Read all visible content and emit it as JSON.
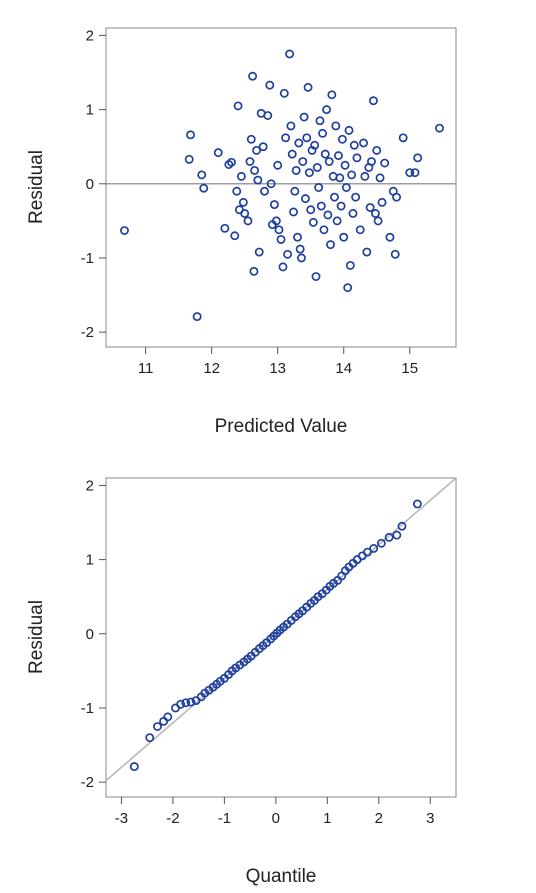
{
  "chart_data": [
    {
      "type": "scatter",
      "xlabel": "Predicted Value",
      "ylabel": "Residual",
      "xlim": [
        10.4,
        15.7
      ],
      "ylim": [
        -2.2,
        2.1
      ],
      "xticks": [
        "11",
        "12",
        "13",
        "14",
        "15"
      ],
      "yticks": [
        "-2",
        "-1",
        "0",
        "1",
        "2"
      ],
      "reference_line": {
        "type": "horizontal",
        "y": 0
      },
      "marker_color": "#1f3f9e",
      "reference_color": "#9e9e9e",
      "points": [
        [
          10.68,
          -0.63
        ],
        [
          11.78,
          -1.79
        ],
        [
          11.68,
          0.66
        ],
        [
          11.66,
          0.33
        ],
        [
          11.85,
          0.12
        ],
        [
          11.88,
          -0.06
        ],
        [
          12.1,
          0.42
        ],
        [
          12.2,
          -0.6
        ],
        [
          12.26,
          0.26
        ],
        [
          12.3,
          0.29
        ],
        [
          12.35,
          -0.7
        ],
        [
          12.38,
          -0.1
        ],
        [
          12.4,
          1.05
        ],
        [
          12.42,
          -0.35
        ],
        [
          12.45,
          0.1
        ],
        [
          12.48,
          -0.25
        ],
        [
          12.5,
          -0.4
        ],
        [
          12.55,
          -0.5
        ],
        [
          12.58,
          0.3
        ],
        [
          12.6,
          0.6
        ],
        [
          12.62,
          1.45
        ],
        [
          12.64,
          -1.18
        ],
        [
          12.65,
          0.18
        ],
        [
          12.68,
          0.45
        ],
        [
          12.7,
          0.05
        ],
        [
          12.72,
          -0.92
        ],
        [
          12.75,
          0.95
        ],
        [
          12.78,
          0.5
        ],
        [
          12.8,
          -0.1
        ],
        [
          12.85,
          0.92
        ],
        [
          12.88,
          1.33
        ],
        [
          12.9,
          0.0
        ],
        [
          12.92,
          -0.55
        ],
        [
          12.95,
          -0.28
        ],
        [
          12.98,
          -0.5
        ],
        [
          13.0,
          0.25
        ],
        [
          13.02,
          -0.62
        ],
        [
          13.05,
          -0.75
        ],
        [
          13.08,
          -1.12
        ],
        [
          13.1,
          1.22
        ],
        [
          13.12,
          0.62
        ],
        [
          13.15,
          -0.95
        ],
        [
          13.18,
          1.75
        ],
        [
          13.2,
          0.78
        ],
        [
          13.22,
          0.4
        ],
        [
          13.24,
          -0.38
        ],
        [
          13.26,
          -0.1
        ],
        [
          13.28,
          0.18
        ],
        [
          13.3,
          -0.72
        ],
        [
          13.32,
          0.55
        ],
        [
          13.34,
          -0.88
        ],
        [
          13.36,
          -1.0
        ],
        [
          13.38,
          0.3
        ],
        [
          13.4,
          0.9
        ],
        [
          13.42,
          -0.2
        ],
        [
          13.44,
          0.62
        ],
        [
          13.46,
          1.3
        ],
        [
          13.48,
          0.15
        ],
        [
          13.5,
          -0.35
        ],
        [
          13.52,
          0.45
        ],
        [
          13.54,
          -0.52
        ],
        [
          13.56,
          0.52
        ],
        [
          13.58,
          -1.25
        ],
        [
          13.6,
          0.22
        ],
        [
          13.62,
          -0.05
        ],
        [
          13.64,
          0.85
        ],
        [
          13.66,
          -0.3
        ],
        [
          13.68,
          0.68
        ],
        [
          13.7,
          -0.62
        ],
        [
          13.72,
          0.4
        ],
        [
          13.74,
          1.0
        ],
        [
          13.76,
          -0.42
        ],
        [
          13.78,
          0.3
        ],
        [
          13.8,
          -0.82
        ],
        [
          13.82,
          1.2
        ],
        [
          13.84,
          0.1
        ],
        [
          13.86,
          -0.18
        ],
        [
          13.88,
          0.78
        ],
        [
          13.9,
          -0.5
        ],
        [
          13.92,
          0.38
        ],
        [
          13.94,
          0.08
        ],
        [
          13.96,
          -0.3
        ],
        [
          13.98,
          0.6
        ],
        [
          14.0,
          -0.72
        ],
        [
          14.02,
          0.25
        ],
        [
          14.04,
          -0.05
        ],
        [
          14.06,
          -1.4
        ],
        [
          14.08,
          0.72
        ],
        [
          14.1,
          -1.1
        ],
        [
          14.12,
          0.12
        ],
        [
          14.14,
          -0.4
        ],
        [
          14.16,
          0.52
        ],
        [
          14.18,
          -0.18
        ],
        [
          14.2,
          0.35
        ],
        [
          14.25,
          -0.62
        ],
        [
          14.3,
          0.55
        ],
        [
          14.32,
          0.1
        ],
        [
          14.35,
          -0.92
        ],
        [
          14.38,
          0.22
        ],
        [
          14.4,
          -0.32
        ],
        [
          14.42,
          0.3
        ],
        [
          14.45,
          1.12
        ],
        [
          14.48,
          -0.4
        ],
        [
          14.5,
          0.45
        ],
        [
          14.52,
          -0.5
        ],
        [
          14.55,
          0.08
        ],
        [
          14.58,
          -0.25
        ],
        [
          14.62,
          0.28
        ],
        [
          14.7,
          -0.72
        ],
        [
          14.75,
          -0.1
        ],
        [
          14.78,
          -0.95
        ],
        [
          14.8,
          -0.18
        ],
        [
          14.9,
          0.62
        ],
        [
          15.0,
          0.15
        ],
        [
          15.08,
          0.15
        ],
        [
          15.12,
          0.35
        ],
        [
          15.45,
          0.75
        ]
      ]
    },
    {
      "type": "scatter",
      "xlabel": "Quantile",
      "ylabel": "Residual",
      "xlim": [
        -3.3,
        3.5
      ],
      "ylim": [
        -2.2,
        2.1
      ],
      "xticks": [
        "-3",
        "-2",
        "-1",
        "0",
        "1",
        "2",
        "3"
      ],
      "yticks": [
        "-2",
        "-1",
        "0",
        "1",
        "2"
      ],
      "reference_line": {
        "type": "diagonal",
        "slope": 0.6,
        "intercept": 0.0
      },
      "marker_color": "#1f3f9e",
      "reference_color": "#b4b4b4",
      "points": [
        [
          -2.75,
          -1.79
        ],
        [
          -2.45,
          -1.4
        ],
        [
          -2.3,
          -1.25
        ],
        [
          -2.18,
          -1.18
        ],
        [
          -2.1,
          -1.12
        ],
        [
          -1.95,
          -1.0
        ],
        [
          -1.85,
          -0.95
        ],
        [
          -1.75,
          -0.93
        ],
        [
          -1.65,
          -0.92
        ],
        [
          -1.55,
          -0.9
        ],
        [
          -1.45,
          -0.85
        ],
        [
          -1.38,
          -0.8
        ],
        [
          -1.3,
          -0.76
        ],
        [
          -1.22,
          -0.72
        ],
        [
          -1.15,
          -0.68
        ],
        [
          -1.08,
          -0.64
        ],
        [
          -1.0,
          -0.6
        ],
        [
          -0.92,
          -0.55
        ],
        [
          -0.85,
          -0.5
        ],
        [
          -0.78,
          -0.46
        ],
        [
          -0.7,
          -0.42
        ],
        [
          -0.62,
          -0.38
        ],
        [
          -0.55,
          -0.34
        ],
        [
          -0.48,
          -0.3
        ],
        [
          -0.4,
          -0.25
        ],
        [
          -0.32,
          -0.2
        ],
        [
          -0.25,
          -0.16
        ],
        [
          -0.18,
          -0.12
        ],
        [
          -0.1,
          -0.07
        ],
        [
          -0.04,
          -0.03
        ],
        [
          0.02,
          0.01
        ],
        [
          0.08,
          0.05
        ],
        [
          0.15,
          0.09
        ],
        [
          0.22,
          0.13
        ],
        [
          0.3,
          0.18
        ],
        [
          0.38,
          0.23
        ],
        [
          0.45,
          0.27
        ],
        [
          0.52,
          0.31
        ],
        [
          0.6,
          0.36
        ],
        [
          0.68,
          0.41
        ],
        [
          0.75,
          0.45
        ],
        [
          0.82,
          0.5
        ],
        [
          0.9,
          0.54
        ],
        [
          0.98,
          0.59
        ],
        [
          1.05,
          0.64
        ],
        [
          1.12,
          0.68
        ],
        [
          1.2,
          0.72
        ],
        [
          1.28,
          0.78
        ],
        [
          1.35,
          0.85
        ],
        [
          1.42,
          0.9
        ],
        [
          1.5,
          0.95
        ],
        [
          1.58,
          1.0
        ],
        [
          1.68,
          1.05
        ],
        [
          1.78,
          1.1
        ],
        [
          1.9,
          1.15
        ],
        [
          2.05,
          1.22
        ],
        [
          2.2,
          1.3
        ],
        [
          2.35,
          1.33
        ],
        [
          2.45,
          1.45
        ],
        [
          2.75,
          1.75
        ]
      ]
    }
  ]
}
